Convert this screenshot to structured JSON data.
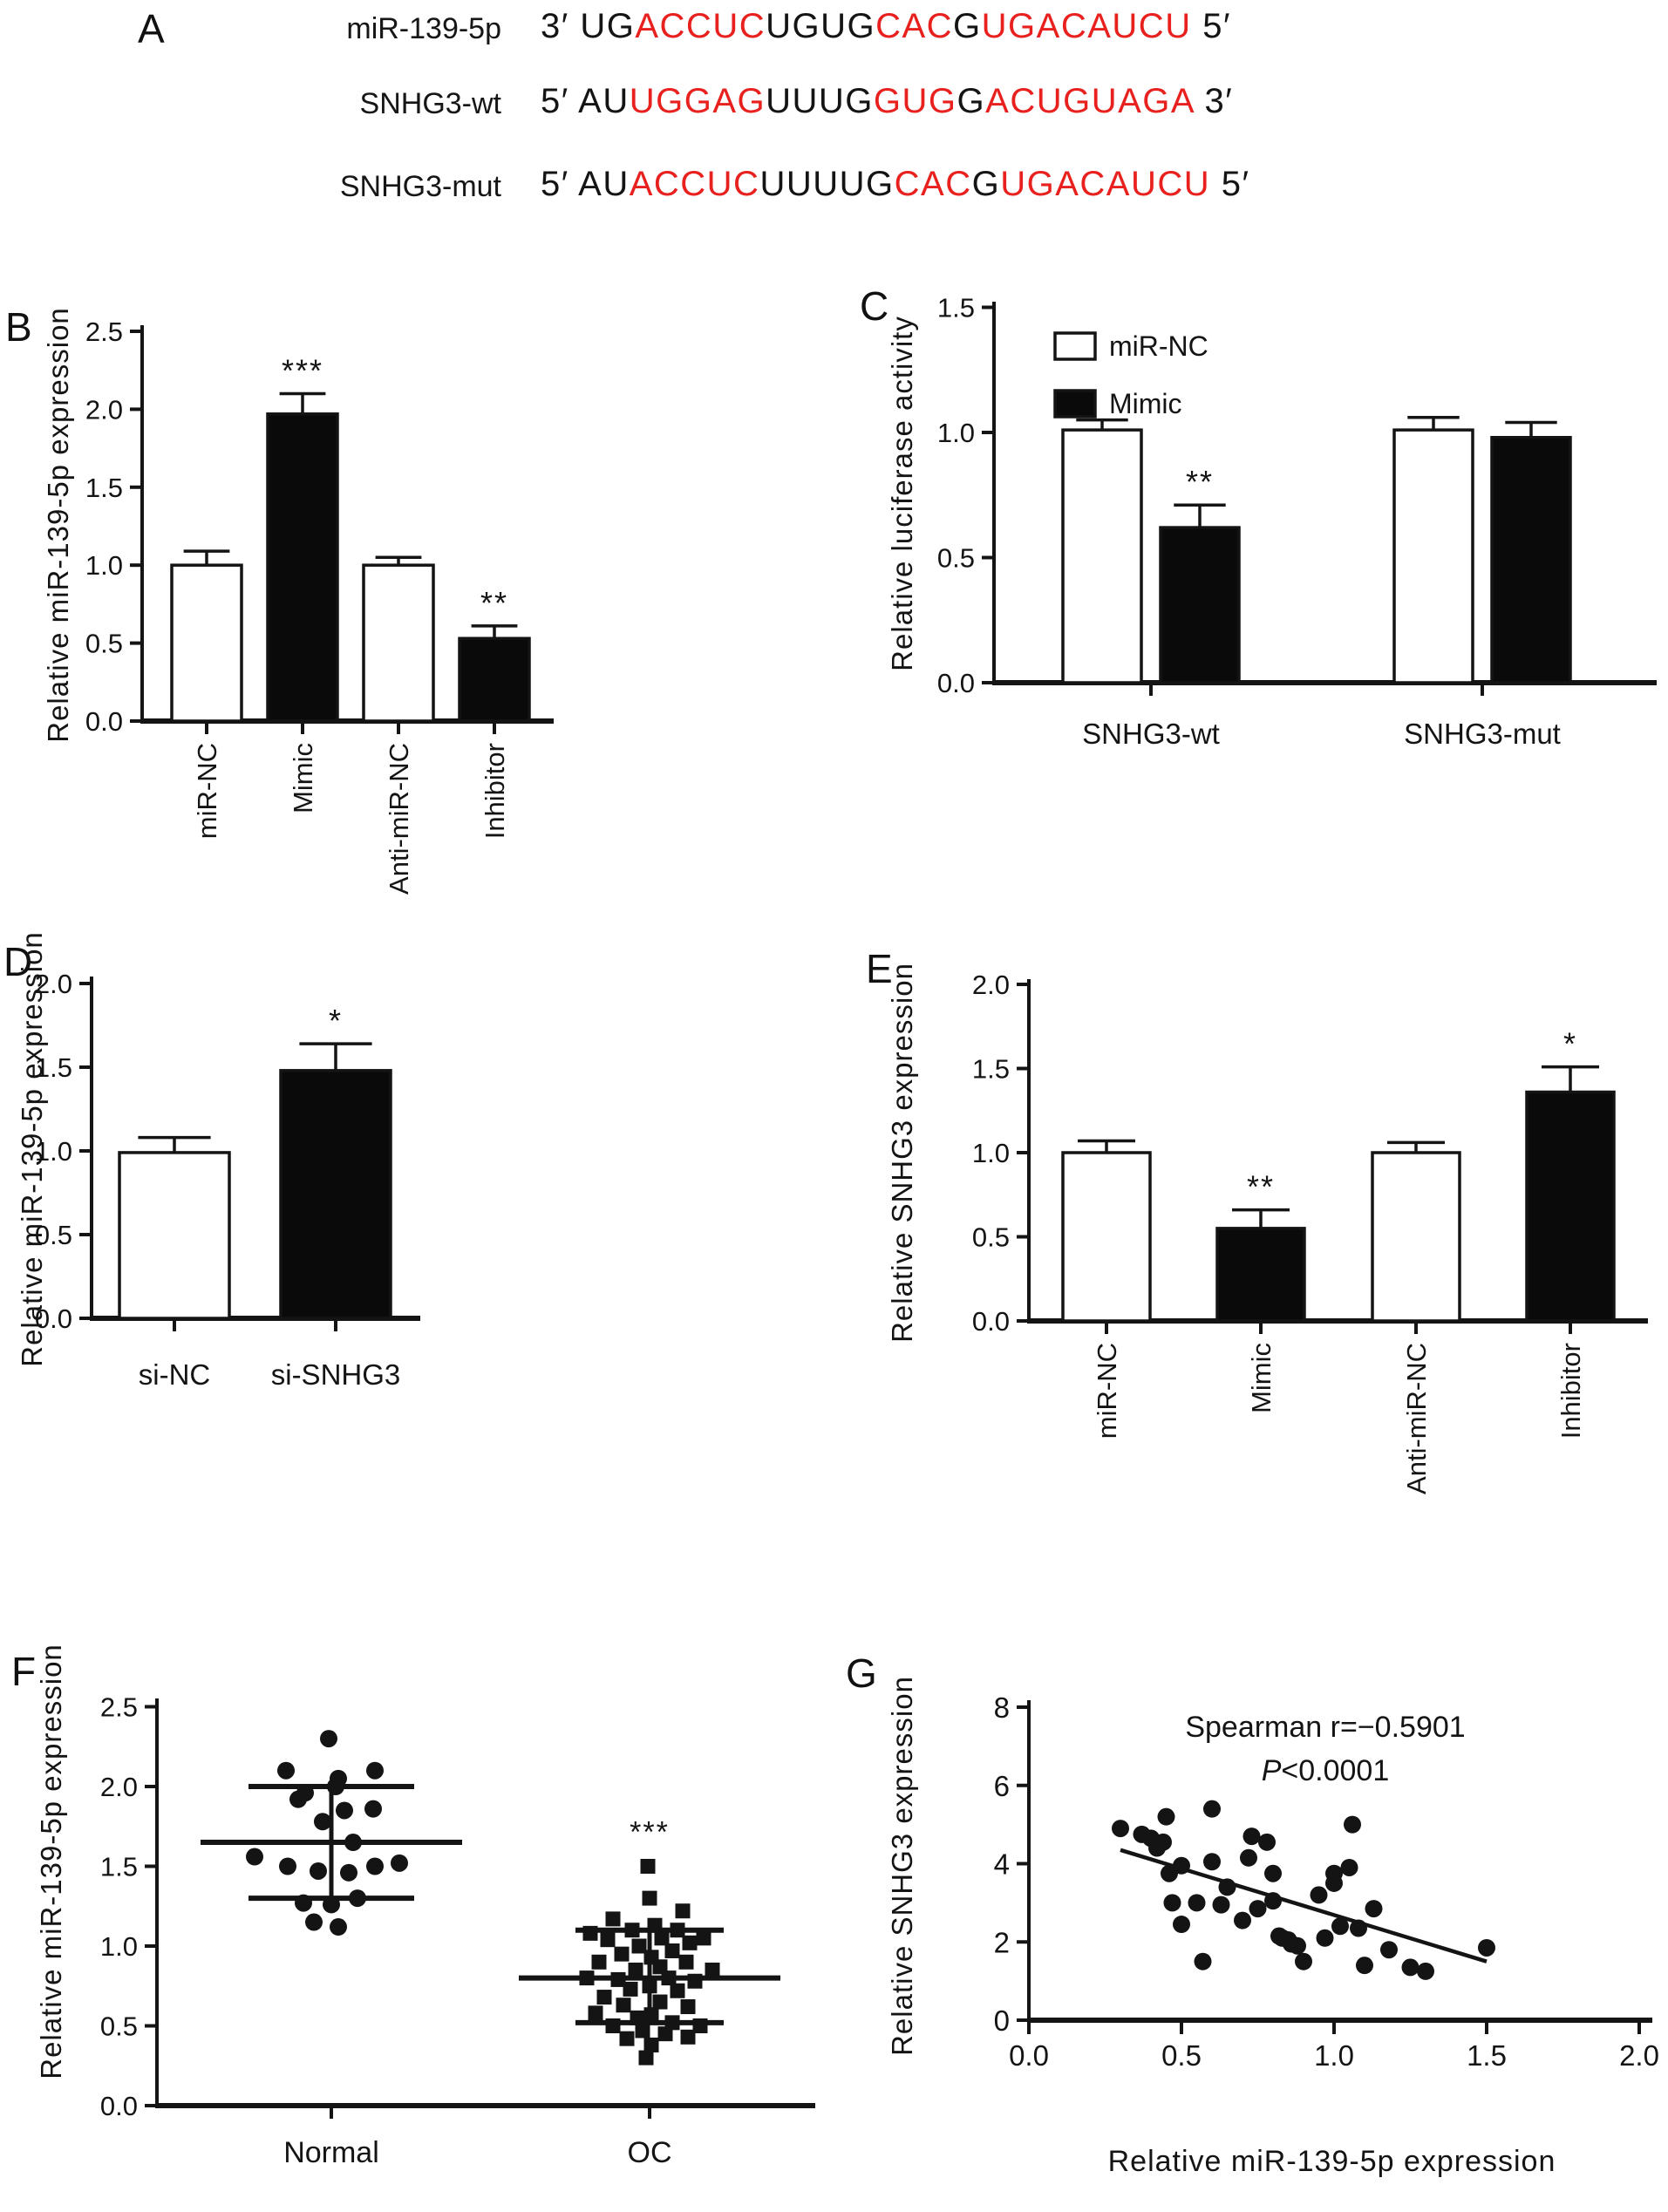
{
  "colors": {
    "ink": "#141414",
    "red": "#e8201e",
    "bar_white": "#ffffff",
    "bar_black": "#0a0a0a"
  },
  "panel_labels": {
    "A": "A",
    "B": "B",
    "C": "C",
    "D": "D",
    "E": "E",
    "F": "F",
    "G": "G"
  },
  "panelA": {
    "rows": [
      {
        "name": "miR-139-5p",
        "segments": [
          {
            "t": "3′ UG",
            "red": false
          },
          {
            "t": "ACCUC",
            "red": true
          },
          {
            "t": "UGUG",
            "red": false
          },
          {
            "t": "CAC",
            "red": true
          },
          {
            "t": "G",
            "red": false
          },
          {
            "t": "UGACAUCU",
            "red": true
          },
          {
            "t": " 5′",
            "red": false
          }
        ]
      },
      {
        "name": "SNHG3-wt",
        "segments": [
          {
            "t": "5′ AU",
            "red": false
          },
          {
            "t": "UGGAG",
            "red": true
          },
          {
            "t": "UUUG",
            "red": false
          },
          {
            "t": "GUG",
            "red": true
          },
          {
            "t": "G",
            "red": false
          },
          {
            "t": "ACUGUAGA",
            "red": true
          },
          {
            "t": " 3′",
            "red": false
          }
        ]
      },
      {
        "name": "SNHG3-mut",
        "segments": [
          {
            "t": "5′ AU",
            "red": false
          },
          {
            "t": "ACCUC",
            "red": true
          },
          {
            "t": "UUUUG",
            "red": false
          },
          {
            "t": "CAC",
            "red": true
          },
          {
            "t": "G",
            "red": false
          },
          {
            "t": "UGACAUCU",
            "red": true
          },
          {
            "t": " 5′",
            "red": false
          }
        ]
      }
    ]
  },
  "chart_data": [
    {
      "id": "B",
      "type": "bar",
      "panel_label": "B",
      "ylabel": "Relative miR-139-5p expression",
      "ylim": [
        0,
        2.5
      ],
      "yticks": [
        0,
        0.5,
        1.0,
        1.5,
        2.0,
        2.5
      ],
      "categories": [
        "miR-NC",
        "Mimic",
        "Anti-miR-NC",
        "Inhibitor"
      ],
      "values": [
        1.0,
        1.97,
        1.0,
        0.53
      ],
      "errors": [
        0.09,
        0.13,
        0.05,
        0.08
      ],
      "fills": [
        "white",
        "black",
        "white",
        "black"
      ],
      "sig": [
        "",
        "***",
        "",
        "**"
      ],
      "category_rotation": 90
    },
    {
      "id": "C",
      "type": "grouped_bar",
      "panel_label": "C",
      "ylabel": "Relative luciferase activity",
      "ylim": [
        0,
        1.5
      ],
      "yticks": [
        0,
        0.5,
        1.0,
        1.5
      ],
      "categories": [
        "SNHG3-wt",
        "SNHG3-mut"
      ],
      "series": [
        {
          "name": "miR-NC",
          "fill": "white",
          "values": [
            1.01,
            1.01
          ],
          "errors": [
            0.04,
            0.05
          ],
          "sig": [
            "",
            ""
          ]
        },
        {
          "name": "Mimic",
          "fill": "black",
          "values": [
            0.62,
            0.98
          ],
          "errors": [
            0.09,
            0.06
          ],
          "sig": [
            "**",
            ""
          ]
        }
      ],
      "legend": [
        "miR-NC",
        "Mimic"
      ],
      "legend_position": "top-left"
    },
    {
      "id": "D",
      "type": "bar",
      "panel_label": "D",
      "ylabel": "Relative miR-139-5p expression",
      "ylim": [
        0,
        2.0
      ],
      "yticks": [
        0,
        0.5,
        1.0,
        1.5,
        2.0
      ],
      "categories": [
        "si-NC",
        "si-SNHG3"
      ],
      "values": [
        0.99,
        1.48
      ],
      "errors": [
        0.09,
        0.16
      ],
      "fills": [
        "white",
        "black"
      ],
      "sig": [
        "",
        "*"
      ],
      "category_rotation": 0
    },
    {
      "id": "E",
      "type": "bar",
      "panel_label": "E",
      "ylabel": "Relative SNHG3 expression",
      "ylim": [
        0,
        2.0
      ],
      "yticks": [
        0,
        0.5,
        1.0,
        1.5,
        2.0
      ],
      "categories": [
        "miR-NC",
        "Mimic",
        "Anti-miR-NC",
        "Inhibitor"
      ],
      "values": [
        1.0,
        0.55,
        1.0,
        1.36
      ],
      "errors": [
        0.07,
        0.11,
        0.06,
        0.15
      ],
      "fills": [
        "white",
        "black",
        "white",
        "black"
      ],
      "sig": [
        "",
        "**",
        "",
        "*"
      ],
      "category_rotation": 90
    },
    {
      "id": "F",
      "type": "scatter_dot",
      "panel_label": "F",
      "ylabel": "Relative miR-139-5p expression",
      "ylim": [
        0,
        2.5
      ],
      "yticks": [
        0,
        0.5,
        1.0,
        1.5,
        2.0,
        2.5
      ],
      "groups": [
        {
          "name": "Normal",
          "marker": "circle",
          "mean": 1.65,
          "sd_high": 2.0,
          "sd_low": 1.3,
          "sig": "",
          "points": [
            [
              -3,
              2.3
            ],
            [
              -52,
              2.1
            ],
            [
              8,
              2.05
            ],
            [
              50,
              2.1
            ],
            [
              -30,
              1.96
            ],
            [
              5,
              2.0
            ],
            [
              -38,
              1.92
            ],
            [
              15,
              1.85
            ],
            [
              48,
              1.86
            ],
            [
              -10,
              1.78
            ],
            [
              25,
              1.65
            ],
            [
              -88,
              1.56
            ],
            [
              -50,
              1.5
            ],
            [
              -15,
              1.47
            ],
            [
              20,
              1.46
            ],
            [
              50,
              1.5
            ],
            [
              78,
              1.52
            ],
            [
              -32,
              1.27
            ],
            [
              0,
              1.26
            ],
            [
              30,
              1.3
            ],
            [
              -20,
              1.15
            ],
            [
              8,
              1.12
            ]
          ]
        },
        {
          "name": "OC",
          "marker": "square",
          "mean": 0.8,
          "sd_high": 1.1,
          "sd_low": 0.52,
          "sig": "***",
          "points": [
            [
              -2,
              1.5
            ],
            [
              0,
              1.3
            ],
            [
              38,
              1.22
            ],
            [
              -42,
              1.17
            ],
            [
              6,
              1.13
            ],
            [
              -20,
              1.1
            ],
            [
              -68,
              1.08
            ],
            [
              32,
              1.1
            ],
            [
              62,
              1.05
            ],
            [
              -48,
              1.04
            ],
            [
              14,
              1.05
            ],
            [
              46,
              1.02
            ],
            [
              -12,
              1.0
            ],
            [
              26,
              0.97
            ],
            [
              -32,
              0.95
            ],
            [
              2,
              0.93
            ],
            [
              -58,
              0.9
            ],
            [
              42,
              0.9
            ],
            [
              12,
              0.87
            ],
            [
              -16,
              0.85
            ],
            [
              72,
              0.85
            ],
            [
              -72,
              0.8
            ],
            [
              -36,
              0.79
            ],
            [
              22,
              0.8
            ],
            [
              52,
              0.78
            ],
            [
              0,
              0.75
            ],
            [
              -22,
              0.73
            ],
            [
              32,
              0.72
            ],
            [
              -52,
              0.68
            ],
            [
              12,
              0.65
            ],
            [
              -30,
              0.63
            ],
            [
              44,
              0.62
            ],
            [
              -62,
              0.58
            ],
            [
              2,
              0.57
            ],
            [
              -14,
              0.55
            ],
            [
              26,
              0.52
            ],
            [
              58,
              0.5
            ],
            [
              -42,
              0.5
            ],
            [
              -8,
              0.47
            ],
            [
              18,
              0.45
            ],
            [
              44,
              0.43
            ],
            [
              -26,
              0.42
            ],
            [
              2,
              0.38
            ],
            [
              -4,
              0.3
            ]
          ]
        }
      ]
    },
    {
      "id": "G",
      "type": "scatter_xy",
      "panel_label": "G",
      "xlabel": "Relative miR-139-5p expression",
      "ylabel": "Relative SNHG3 expression",
      "xlim": [
        0,
        2.0
      ],
      "xticks": [
        0,
        0.5,
        1.0,
        1.5,
        2.0
      ],
      "ylim": [
        0,
        8
      ],
      "yticks": [
        0,
        2,
        4,
        6,
        8
      ],
      "annotation_line1": "Spearman r=−0.5901",
      "annotation_line2": "P<0.0001",
      "trend": [
        [
          0.3,
          4.35
        ],
        [
          1.5,
          1.5
        ]
      ],
      "points": [
        [
          0.3,
          4.9
        ],
        [
          0.37,
          4.75
        ],
        [
          0.4,
          4.65
        ],
        [
          0.42,
          4.4
        ],
        [
          0.44,
          4.55
        ],
        [
          0.45,
          5.2
        ],
        [
          0.46,
          3.75
        ],
        [
          0.47,
          3.0
        ],
        [
          0.5,
          3.95
        ],
        [
          0.5,
          2.45
        ],
        [
          0.55,
          3.0
        ],
        [
          0.57,
          1.5
        ],
        [
          0.6,
          5.4
        ],
        [
          0.6,
          4.05
        ],
        [
          0.63,
          2.95
        ],
        [
          0.65,
          3.4
        ],
        [
          0.7,
          2.55
        ],
        [
          0.72,
          4.15
        ],
        [
          0.73,
          4.7
        ],
        [
          0.75,
          2.85
        ],
        [
          0.78,
          4.55
        ],
        [
          0.8,
          3.75
        ],
        [
          0.8,
          3.05
        ],
        [
          0.82,
          2.15
        ],
        [
          0.83,
          2.1
        ],
        [
          0.85,
          2.05
        ],
        [
          0.86,
          1.95
        ],
        [
          0.88,
          1.9
        ],
        [
          0.9,
          1.5
        ],
        [
          0.95,
          3.2
        ],
        [
          0.97,
          2.1
        ],
        [
          1.0,
          3.5
        ],
        [
          1.0,
          3.75
        ],
        [
          1.02,
          2.4
        ],
        [
          1.05,
          3.9
        ],
        [
          1.06,
          5.0
        ],
        [
          1.08,
          2.35
        ],
        [
          1.1,
          1.4
        ],
        [
          1.13,
          2.85
        ],
        [
          1.18,
          1.8
        ],
        [
          1.25,
          1.35
        ],
        [
          1.3,
          1.25
        ],
        [
          1.5,
          1.85
        ]
      ]
    }
  ]
}
